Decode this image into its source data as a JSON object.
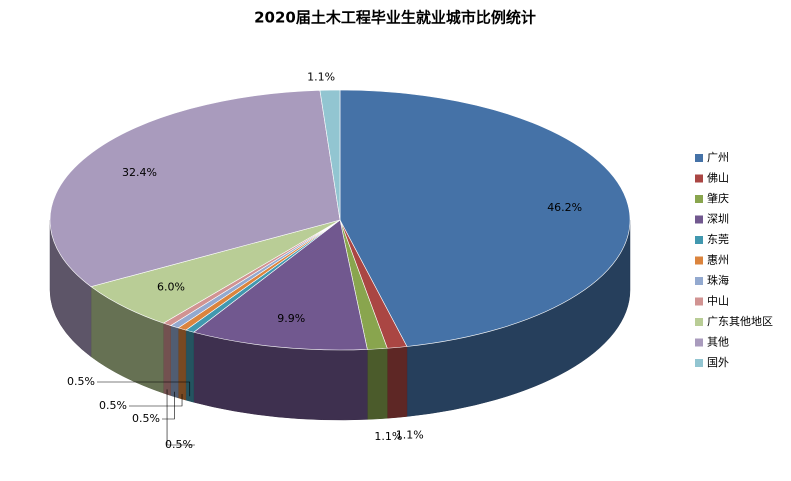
{
  "chart_data": {
    "type": "pie3d",
    "title": "2020届土木工程毕业生就业城市比例统计",
    "categories": [
      "广州",
      "佛山",
      "肇庆",
      "深圳",
      "东莞",
      "惠州",
      "珠海",
      "中山",
      "广东其他地区",
      "其他",
      "国外"
    ],
    "values": [
      46.2,
      1.1,
      1.1,
      9.9,
      0.5,
      0.5,
      0.5,
      0.5,
      6.0,
      32.4,
      1.1
    ],
    "value_labels": [
      "46.2%",
      "1.1%",
      "1.1%",
      "9.9%",
      "0.5%",
      "0.5%",
      "0.5%",
      "0.5%",
      "6.0%",
      "32.4%",
      "1.1%"
    ],
    "colors": [
      "#4572a7",
      "#aa4643",
      "#89a54e",
      "#71588f",
      "#4198af",
      "#db843d",
      "#93a9cf",
      "#d19392",
      "#b9cd96",
      "#a99bbd",
      "#92c5d1"
    ],
    "legend": "right"
  }
}
